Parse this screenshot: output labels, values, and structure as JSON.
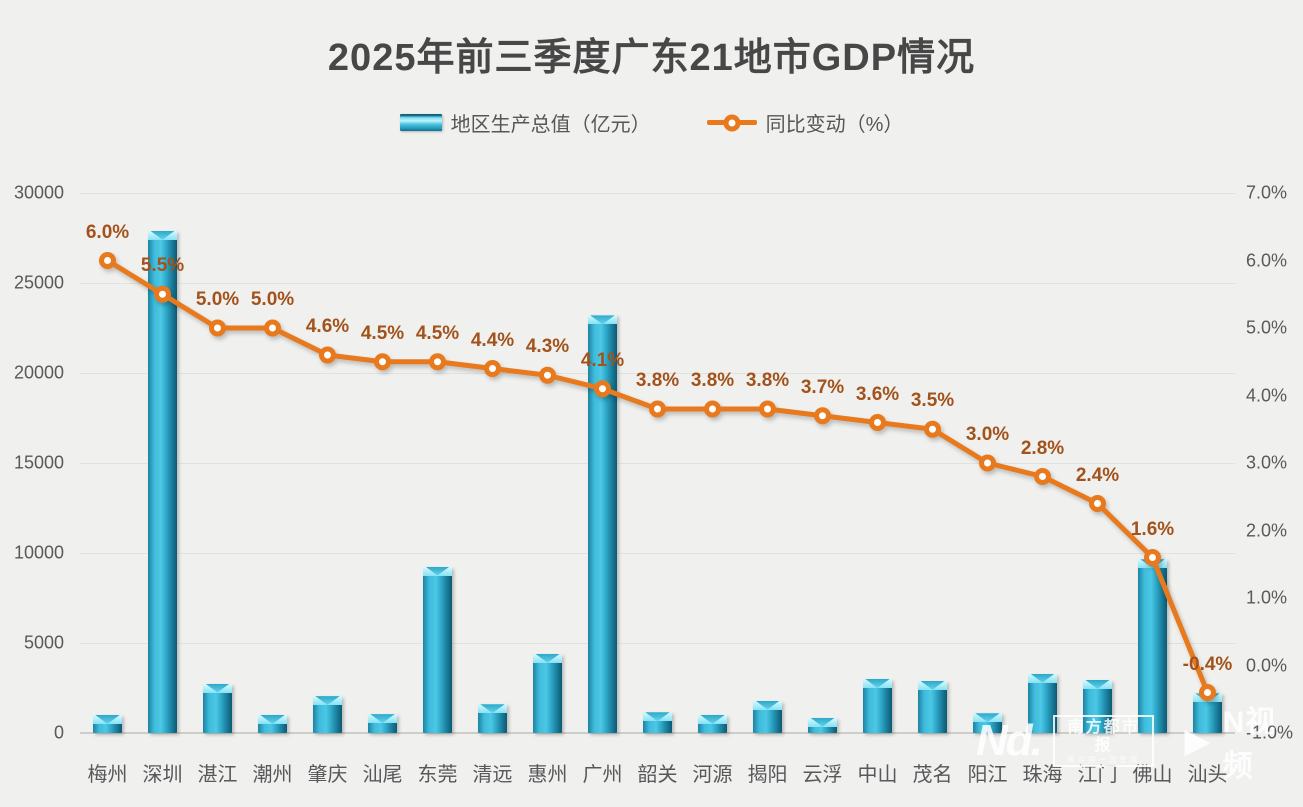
{
  "title": "2025年前三季度广东21地市GDP情况",
  "legend": {
    "bar_label": "地区生产总值（亿元）",
    "line_label": "同比变动（%）"
  },
  "watermark": {
    "logo_text": "Nd.",
    "paper_name": "南方都市报",
    "paper_slogan": "做中国一流智媒",
    "play_icon": "▶",
    "video_brand": "N视频"
  },
  "chart_data": {
    "type": "bar+line",
    "title": "2025年前三季度广东21地市GDP情况",
    "categories": [
      "梅州",
      "深圳",
      "湛江",
      "潮州",
      "肇庆",
      "汕尾",
      "东莞",
      "清远",
      "惠州",
      "广州",
      "韶关",
      "河源",
      "揭阳",
      "云浮",
      "中山",
      "茂名",
      "阳江",
      "珠海",
      "江门",
      "佛山",
      "汕头"
    ],
    "series": [
      {
        "name": "地区生产总值（亿元）",
        "type": "bar",
        "axis": "left",
        "color": "#2fa9c9",
        "values": [
          1000,
          27900,
          2750,
          1000,
          2050,
          1050,
          9250,
          1600,
          4400,
          23200,
          1150,
          1000,
          1800,
          850,
          3000,
          2900,
          1100,
          3300,
          2950,
          9650,
          2200
        ]
      },
      {
        "name": "同比变动（%）",
        "type": "line",
        "axis": "right",
        "color": "#e8791c",
        "values": [
          6.0,
          5.5,
          5.0,
          5.0,
          4.6,
          4.5,
          4.5,
          4.4,
          4.3,
          4.1,
          3.8,
          3.8,
          3.8,
          3.7,
          3.6,
          3.5,
          3.0,
          2.8,
          2.4,
          1.6,
          -0.4
        ],
        "point_labels": [
          "6.0%",
          "5.5%",
          "5.0%",
          "5.0%",
          "4.6%",
          "4.5%",
          "4.5%",
          "4.4%",
          "4.3%",
          "4.1%",
          "3.8%",
          "3.8%",
          "3.8%",
          "3.7%",
          "3.6%",
          "3.5%",
          "3.0%",
          "2.8%",
          "2.4%",
          "1.6%",
          "-0.4%"
        ]
      }
    ],
    "left_axis": {
      "min": 0,
      "max": 30000,
      "step": 5000,
      "tick_values": [
        30000,
        25000,
        20000,
        15000,
        10000,
        5000,
        0
      ],
      "tick_labels": [
        "30000",
        "25000",
        "20000",
        "15000",
        "10000",
        "5000",
        "0"
      ]
    },
    "right_axis": {
      "min": -1,
      "max": 7,
      "step": 1,
      "tick_values": [
        7,
        6,
        5,
        4,
        3,
        2,
        1,
        0,
        -1
      ],
      "tick_labels": [
        "7.0%",
        "6.0%",
        "5.0%",
        "4.0%",
        "3.0%",
        "2.0%",
        "1.0%",
        "0.0%",
        "-1.0%"
      ]
    },
    "grid": true,
    "legend_position": "top",
    "label_color": "#a2521b",
    "background": "#f0f0ee"
  }
}
